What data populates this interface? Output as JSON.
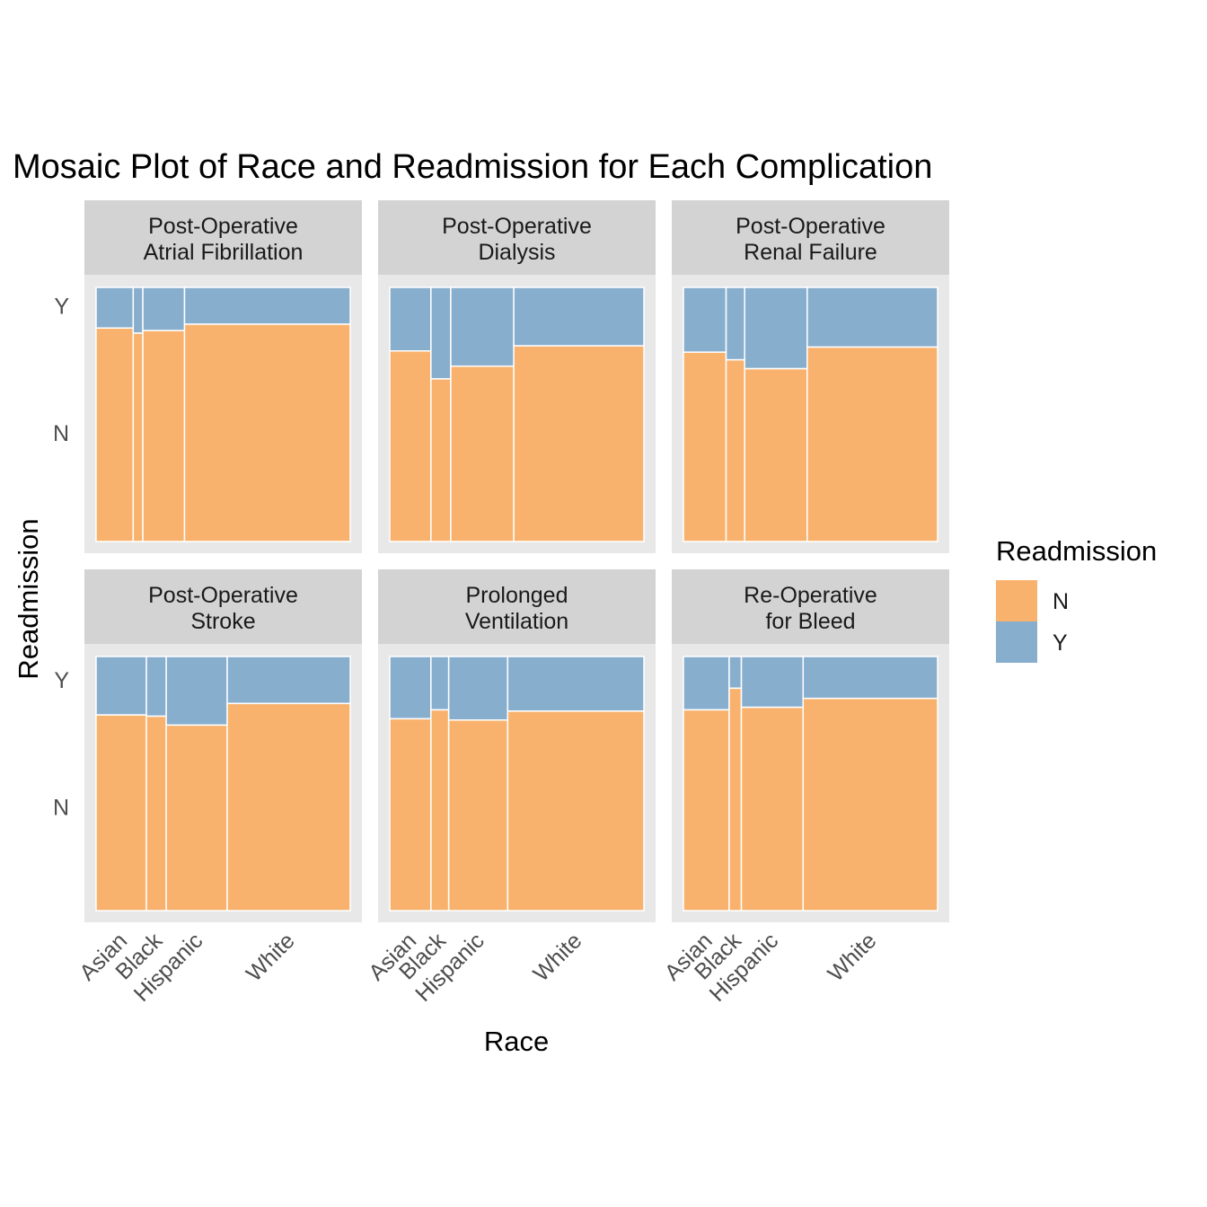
{
  "chart_data": {
    "type": "mosaic",
    "title": "Mosaic Plot of Race and Readmission for Each Complication",
    "xlabel": "Race",
    "ylabel": "Readmission",
    "legend": {
      "title": "Readmission",
      "placement": "right",
      "entries": [
        {
          "label": "N",
          "color": "#F8B26D"
        },
        {
          "label": "Y",
          "color": "#88AECE"
        }
      ]
    },
    "y_levels": [
      "N",
      "Y"
    ],
    "categories": [
      "Asian",
      "Black",
      "Hispanic",
      "White"
    ],
    "panels": [
      {
        "title_lines": [
          "Post-Operative",
          "Atrial Fibrillation"
        ],
        "race_share": [
          0.146,
          0.038,
          0.164,
          0.652
        ],
        "n_share": [
          0.84,
          0.82,
          0.83,
          0.855
        ]
      },
      {
        "title_lines": [
          "Post-Operative",
          "Dialysis"
        ],
        "race_share": [
          0.162,
          0.078,
          0.248,
          0.512
        ],
        "n_share": [
          0.75,
          0.64,
          0.69,
          0.77
        ]
      },
      {
        "title_lines": [
          "Post-Operative",
          "Renal Failure"
        ],
        "race_share": [
          0.168,
          0.073,
          0.246,
          0.513
        ],
        "n_share": [
          0.745,
          0.715,
          0.68,
          0.765
        ]
      },
      {
        "title_lines": [
          "Post-Operative",
          "Stroke"
        ],
        "race_share": [
          0.198,
          0.078,
          0.24,
          0.484
        ],
        "n_share": [
          0.77,
          0.765,
          0.73,
          0.815
        ]
      },
      {
        "title_lines": [
          "Prolonged",
          "Ventilation"
        ],
        "race_share": [
          0.162,
          0.07,
          0.232,
          0.536
        ],
        "n_share": [
          0.755,
          0.79,
          0.75,
          0.785
        ]
      },
      {
        "title_lines": [
          "Re-Operative",
          "for Bleed"
        ],
        "race_share": [
          0.18,
          0.048,
          0.243,
          0.529
        ],
        "n_share": [
          0.79,
          0.875,
          0.8,
          0.835
        ]
      }
    ]
  }
}
